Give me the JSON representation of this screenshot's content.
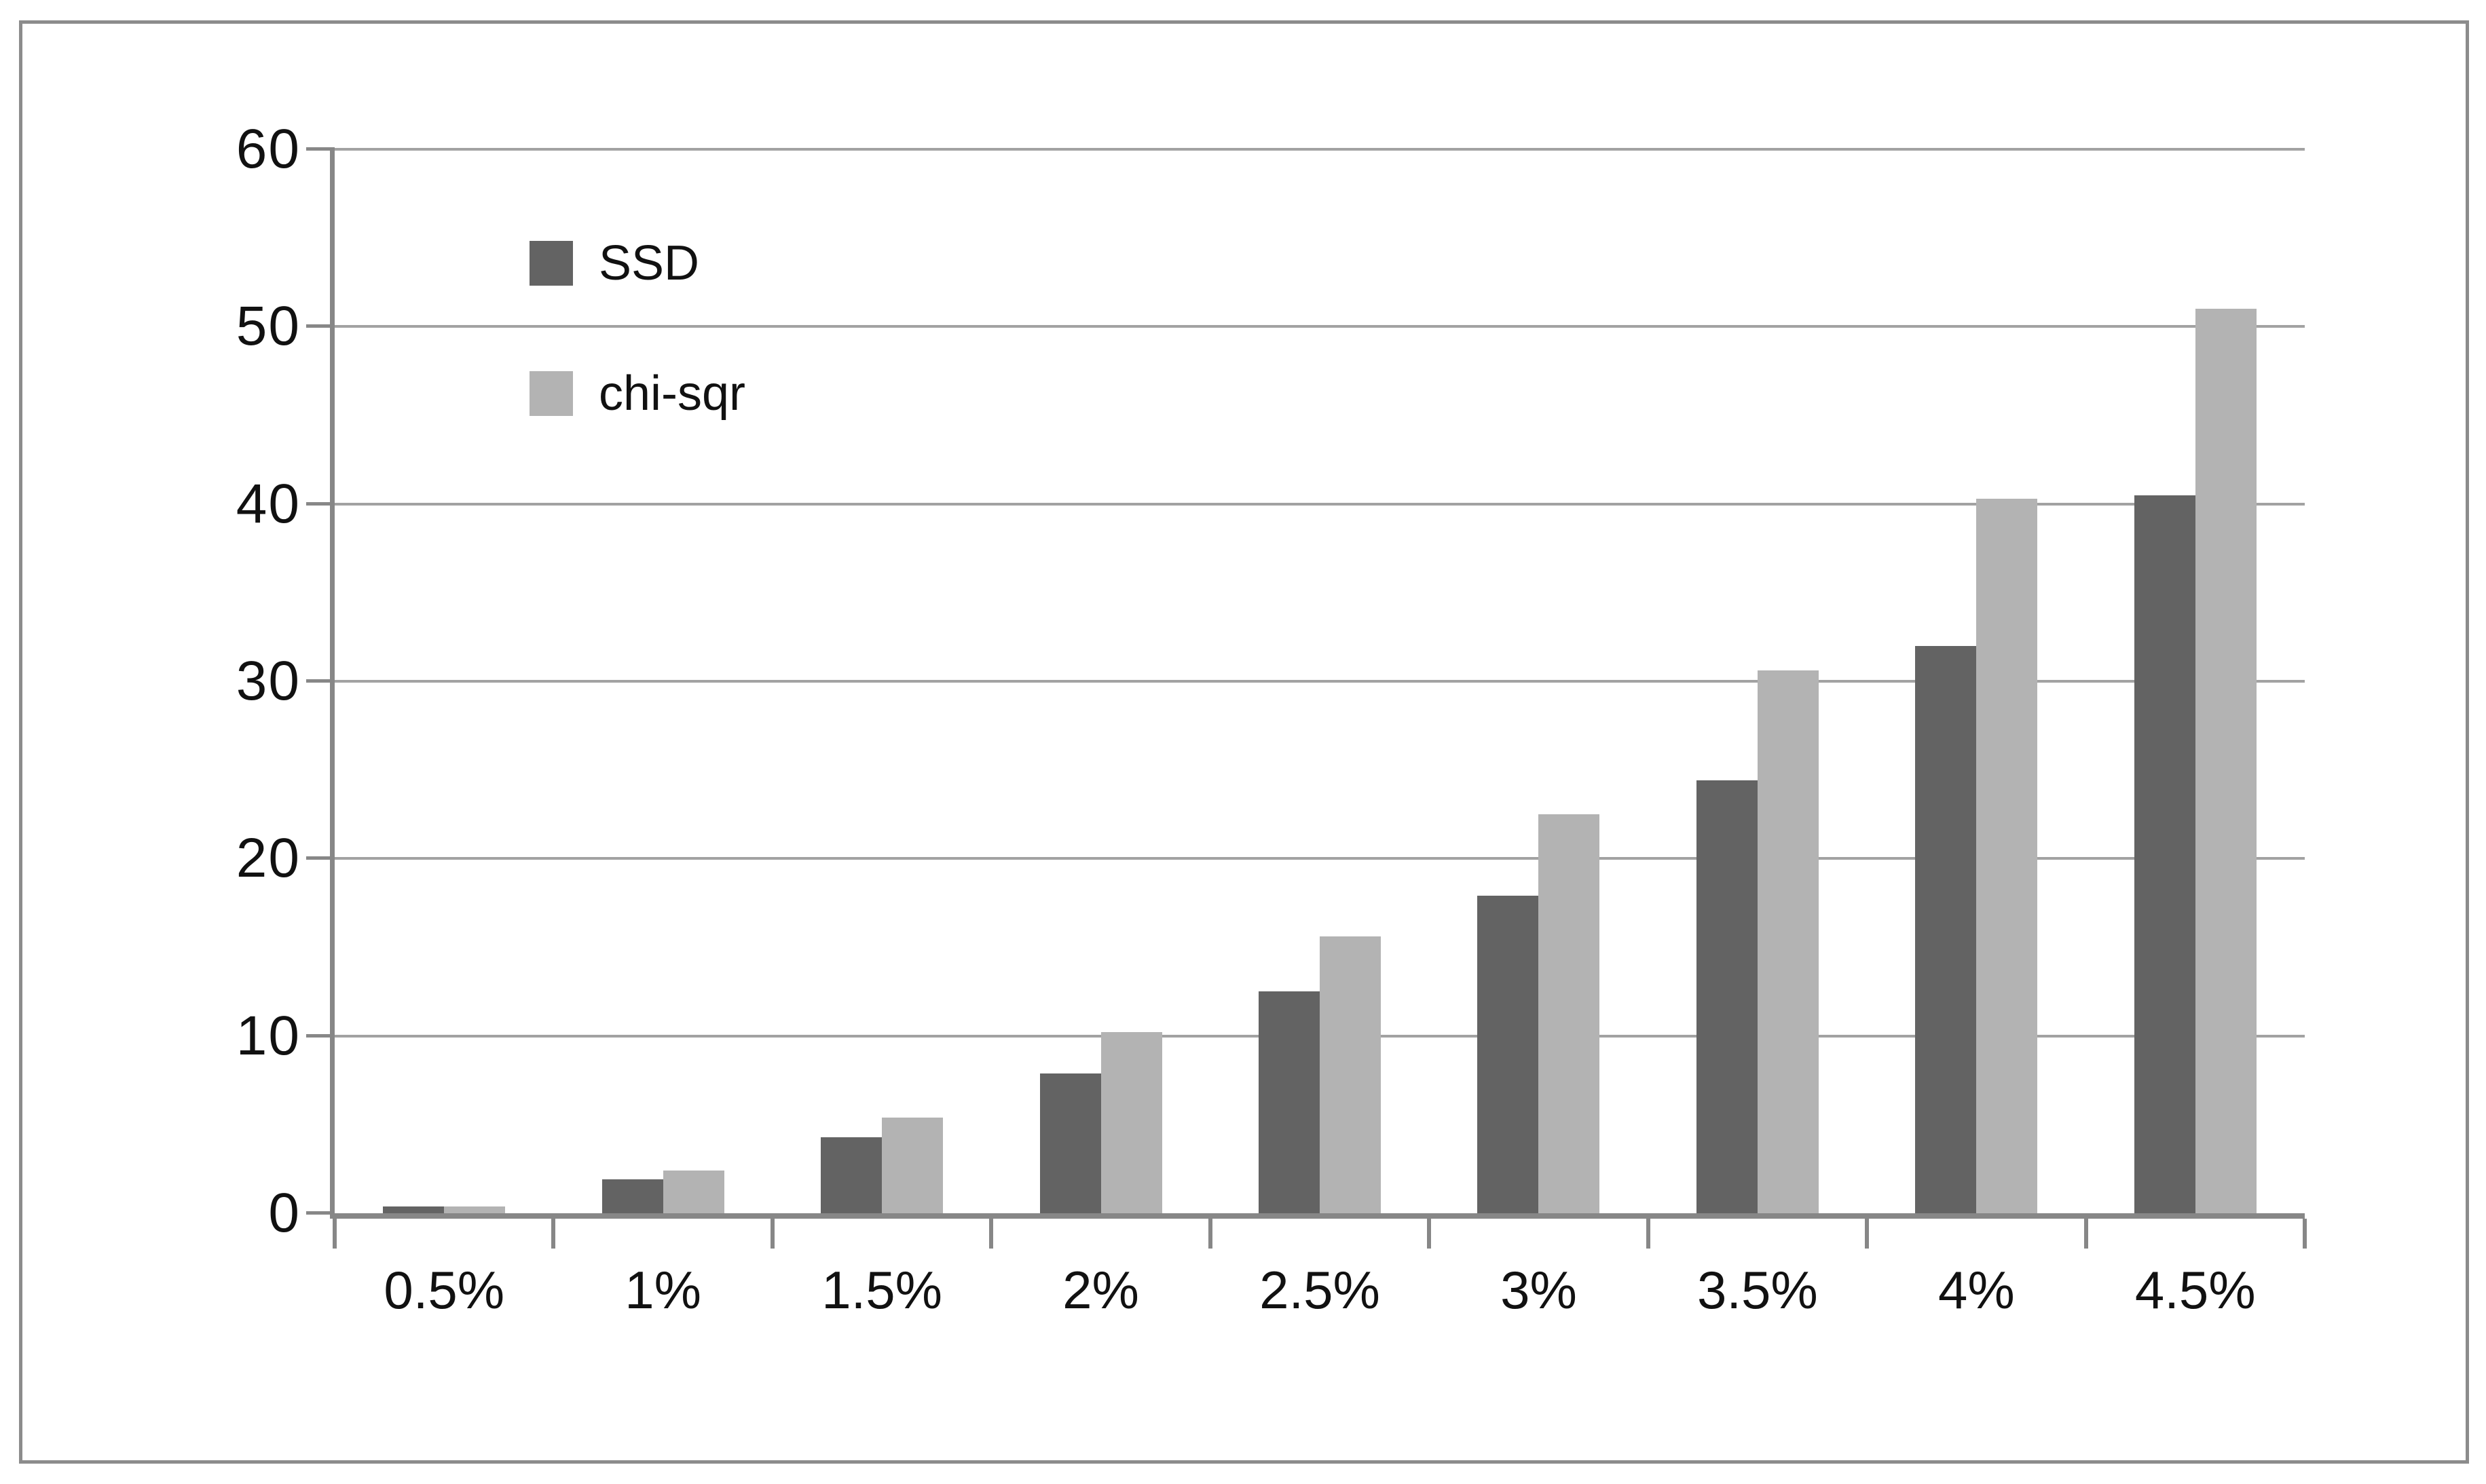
{
  "chart_data": {
    "type": "bar",
    "title": "",
    "xlabel": "",
    "ylabel": "",
    "categories": [
      "0.5%",
      "1%",
      "1.5%",
      "2%",
      "2.5%",
      "3%",
      "3.5%",
      "4%",
      "4.5%"
    ],
    "series": [
      {
        "name": "SSD",
        "color": "#636363",
        "values": [
          0.4,
          1.9,
          4.3,
          7.9,
          12.5,
          17.9,
          24.4,
          32.0,
          40.5
        ]
      },
      {
        "name": "chi-sqr",
        "color": "#b3b3b3",
        "values": [
          0.4,
          2.4,
          5.4,
          10.2,
          15.6,
          22.5,
          30.6,
          40.3,
          51.0
        ]
      }
    ],
    "ylim": [
      0,
      60
    ],
    "y_ticks": [
      0,
      10,
      20,
      30,
      40,
      50,
      60
    ],
    "grid": "horizontal",
    "legend_position": "top-left-inside"
  },
  "legend": {
    "items": [
      {
        "label": "SSD"
      },
      {
        "label": "chi-sqr"
      }
    ]
  },
  "colors": {
    "frame_border": "#8c8c8c",
    "axis": "#878787",
    "gridline": "#a2a2a2",
    "text": "#111111",
    "background": "#ffffff"
  }
}
